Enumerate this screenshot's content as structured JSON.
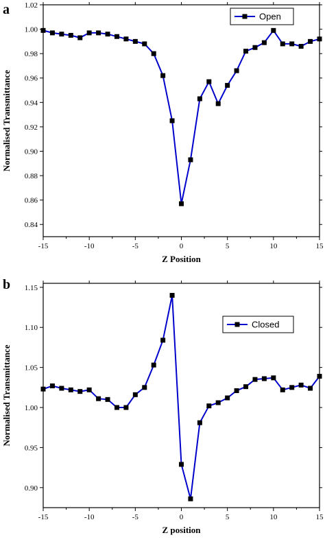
{
  "chart_data": [
    {
      "type": "line",
      "panel_label": "a",
      "xlabel": "Z Position",
      "ylabel": "Normalised Transmittance",
      "xlim": [
        -15,
        15
      ],
      "ylim": [
        0.83,
        1.02
      ],
      "xticks": [
        -15,
        -10,
        -5,
        0,
        5,
        10,
        15
      ],
      "yticks": [
        "0.84",
        "0.86",
        "0.88",
        "0.90",
        "0.92",
        "0.94",
        "0.96",
        "0.98",
        "1.00",
        "1.02"
      ],
      "legend_position": "top-right",
      "series": [
        {
          "name": "Open",
          "color": "#0000cc",
          "marker_color": "#000000",
          "x": [
            -15,
            -14,
            -13,
            -12,
            -11,
            -10,
            -9,
            -8,
            -7,
            -6,
            -5,
            -4,
            -3,
            -2,
            -1,
            0,
            1,
            2,
            3,
            4,
            5,
            6,
            7,
            8,
            9,
            10,
            11,
            12,
            13,
            14,
            15
          ],
          "y": [
            0.999,
            0.997,
            0.996,
            0.995,
            0.993,
            0.997,
            0.997,
            0.996,
            0.994,
            0.992,
            0.99,
            0.988,
            0.98,
            0.962,
            0.925,
            0.857,
            0.893,
            0.943,
            0.957,
            0.939,
            0.954,
            0.966,
            0.982,
            0.985,
            0.989,
            0.999,
            0.988,
            0.988,
            0.986,
            0.99,
            0.992
          ]
        }
      ]
    },
    {
      "type": "line",
      "panel_label": "b",
      "xlabel": "Z position",
      "ylabel": "Normalised Transmittance",
      "xlim": [
        -15,
        15
      ],
      "ylim": [
        0.875,
        1.155
      ],
      "xticks": [
        -15,
        -10,
        -5,
        0,
        5,
        10,
        15
      ],
      "yticks": [
        "0.90",
        "0.95",
        "1.00",
        "1.05",
        "1.10",
        "1.15"
      ],
      "legend_position": "top-right",
      "series": [
        {
          "name": "Closed",
          "color": "#0000cc",
          "marker_color": "#000000",
          "x": [
            -15,
            -14,
            -13,
            -12,
            -11,
            -10,
            -9,
            -8,
            -7,
            -6,
            -5,
            -4,
            -3,
            -2,
            -1,
            0,
            1,
            2,
            3,
            4,
            5,
            6,
            7,
            8,
            9,
            10,
            11,
            12,
            13,
            14,
            15
          ],
          "y": [
            1.023,
            1.027,
            1.024,
            1.022,
            1.02,
            1.022,
            1.011,
            1.01,
            1.0,
            1.0,
            1.016,
            1.025,
            1.053,
            1.084,
            1.14,
            0.929,
            0.886,
            0.981,
            1.002,
            1.006,
            1.012,
            1.021,
            1.026,
            1.035,
            1.036,
            1.037,
            1.022,
            1.025,
            1.028,
            1.024,
            1.039
          ]
        }
      ]
    }
  ]
}
